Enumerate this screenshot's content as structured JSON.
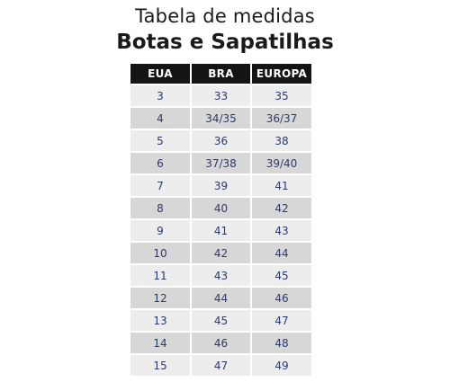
{
  "title_line1": "Tabela de medidas",
  "title_line2": "Botas e Sapatilhas",
  "headers": [
    "EUA",
    "BRA",
    "EUROPA"
  ],
  "rows": [
    [
      "3",
      "33",
      "35"
    ],
    [
      "4",
      "34/35",
      "36/37"
    ],
    [
      "5",
      "36",
      "38"
    ],
    [
      "6",
      "37/38",
      "39/40"
    ],
    [
      "7",
      "39",
      "41"
    ],
    [
      "8",
      "40",
      "42"
    ],
    [
      "9",
      "41",
      "43"
    ],
    [
      "10",
      "42",
      "44"
    ],
    [
      "11",
      "43",
      "45"
    ],
    [
      "12",
      "44",
      "46"
    ],
    [
      "13",
      "45",
      "47"
    ],
    [
      "14",
      "46",
      "48"
    ],
    [
      "15",
      "47",
      "49"
    ]
  ],
  "colors": {
    "header_bg": "#141414",
    "row_light": "#ededed",
    "row_dark": "#d7d7d7",
    "value_text": "#2d3a6e"
  }
}
